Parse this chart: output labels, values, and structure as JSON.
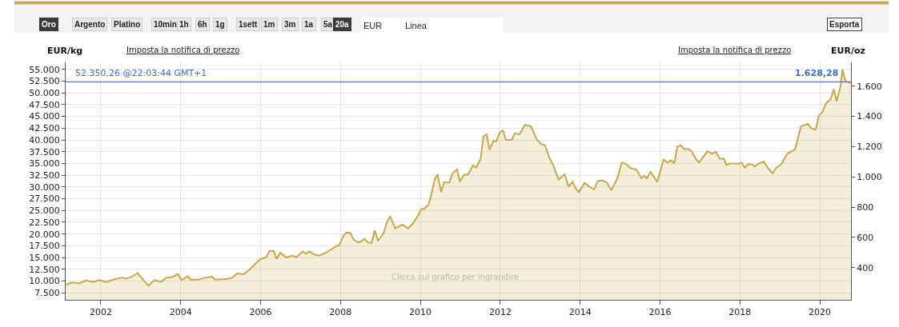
{
  "chart_data": {
    "type": "area",
    "xlabel": null,
    "ylabel": "EUR/kg",
    "y2label": "EUR/oz",
    "x": [
      2001.13,
      2001.28,
      2001.46,
      2001.63,
      2001.81,
      2001.96,
      2002.14,
      2002.35,
      2002.53,
      2002.64,
      2002.78,
      2002.92,
      2003.07,
      2003.19,
      2003.35,
      2003.5,
      2003.64,
      2003.78,
      2003.93,
      2004.02,
      2004.18,
      2004.25,
      2004.43,
      2004.61,
      2004.79,
      2004.86,
      2005.14,
      2005.29,
      2005.41,
      2005.57,
      2005.72,
      2005.86,
      2006.0,
      2006.13,
      2006.23,
      2006.33,
      2006.4,
      2006.49,
      2006.65,
      2006.79,
      2006.9,
      2007.06,
      2007.14,
      2007.22,
      2007.33,
      2007.47,
      2007.65,
      2007.87,
      2007.97,
      2008.08,
      2008.15,
      2008.24,
      2008.33,
      2008.44,
      2008.51,
      2008.6,
      2008.69,
      2008.78,
      2008.86,
      2008.94,
      2009.08,
      2009.16,
      2009.24,
      2009.37,
      2009.55,
      2009.69,
      2009.8,
      2009.87,
      2009.94,
      2010.02,
      2010.09,
      2010.21,
      2010.28,
      2010.36,
      2010.43,
      2010.52,
      2010.59,
      2010.73,
      2010.8,
      2010.92,
      2010.99,
      2011.09,
      2011.19,
      2011.32,
      2011.4,
      2011.51,
      2011.58,
      2011.66,
      2011.73,
      2011.83,
      2011.9,
      2011.99,
      2012.07,
      2012.14,
      2012.29,
      2012.36,
      2012.48,
      2012.62,
      2012.77,
      2012.92,
      2013.03,
      2013.12,
      2013.22,
      2013.33,
      2013.46,
      2013.61,
      2013.71,
      2013.81,
      2013.9,
      2013.97,
      2014.11,
      2014.22,
      2014.35,
      2014.44,
      2014.55,
      2014.67,
      2014.78,
      2014.93,
      2015.04,
      2015.15,
      2015.26,
      2015.41,
      2015.53,
      2015.61,
      2015.67,
      2015.76,
      2015.93,
      2016.09,
      2016.19,
      2016.28,
      2016.36,
      2016.43,
      2016.52,
      2016.61,
      2016.71,
      2016.8,
      2016.89,
      2016.98,
      2017.08,
      2017.19,
      2017.3,
      2017.4,
      2017.49,
      2017.6,
      2017.66,
      2017.75,
      2017.86,
      2017.95,
      2018.04,
      2018.12,
      2018.21,
      2018.3,
      2018.38,
      2018.45,
      2018.6,
      2018.71,
      2018.82,
      2018.9,
      2019.03,
      2019.19,
      2019.38,
      2019.53,
      2019.7,
      2019.8,
      2019.9,
      2019.97,
      2020.07,
      2020.16,
      2020.27,
      2020.35,
      2020.42,
      2020.52,
      2020.57,
      2020.64,
      2020.77
    ],
    "series": [
      {
        "color": "#c8a84b",
        "values": [
          9200,
          9700,
          9500,
          10100,
          9800,
          10200,
          9800,
          10400,
          10700,
          10500,
          10900,
          11700,
          10200,
          9000,
          10200,
          9800,
          10700,
          10800,
          11500,
          10200,
          11000,
          10300,
          10300,
          10700,
          10900,
          10300,
          10400,
          10700,
          11600,
          11400,
          12400,
          13600,
          14700,
          15000,
          16400,
          16400,
          14700,
          16000,
          15000,
          15400,
          15100,
          16300,
          15800,
          16300,
          15700,
          15400,
          16100,
          17300,
          17600,
          19700,
          20300,
          20300,
          18800,
          18200,
          18400,
          18900,
          18200,
          18100,
          20800,
          18500,
          20200,
          22400,
          23800,
          21200,
          22000,
          21200,
          22100,
          23000,
          23900,
          25300,
          25300,
          26300,
          28600,
          31600,
          32700,
          28900,
          31000,
          30900,
          32900,
          33700,
          31100,
          32600,
          32600,
          34600,
          34100,
          36000,
          40800,
          41200,
          37900,
          39800,
          39700,
          41600,
          42000,
          40000,
          40000,
          41400,
          41200,
          43200,
          42900,
          40000,
          39100,
          38900,
          36400,
          34600,
          31600,
          32700,
          30100,
          31100,
          29500,
          28900,
          30900,
          30100,
          29500,
          31200,
          31400,
          30900,
          29300,
          31800,
          35200,
          34900,
          34000,
          33700,
          31900,
          32400,
          31800,
          33200,
          31100,
          35800,
          35200,
          35700,
          35000,
          38600,
          38800,
          38000,
          38100,
          37500,
          36000,
          35200,
          36400,
          37600,
          37100,
          37500,
          36000,
          36000,
          34700,
          35000,
          35000,
          34900,
          35200,
          34100,
          34900,
          34800,
          34400,
          34900,
          35400,
          33900,
          32900,
          34000,
          34800,
          37100,
          38000,
          42900,
          43400,
          42400,
          42200,
          45100,
          46000,
          47900,
          48600,
          50800,
          48200,
          51400,
          55000,
          52500,
          52100
        ]
      }
    ],
    "xlim": [
      2001.12,
      2020.78
    ],
    "xticks": [
      2002,
      2004,
      2006,
      2008,
      2010,
      2012,
      2014,
      2016,
      2018,
      2020
    ],
    "ylim": [
      6000,
      56500
    ],
    "yticks": [
      {
        "value": 7500,
        "label": "7.500"
      },
      {
        "value": 10000,
        "label": "10.000"
      },
      {
        "value": 12500,
        "label": "12.500"
      },
      {
        "value": 15000,
        "label": "15.000"
      },
      {
        "value": 17500,
        "label": "17.500"
      },
      {
        "value": 20000,
        "label": "20.000"
      },
      {
        "value": 22500,
        "label": "22.500"
      },
      {
        "value": 25000,
        "label": "25.000"
      },
      {
        "value": 27500,
        "label": "27.500"
      },
      {
        "value": 30000,
        "label": "30.000"
      },
      {
        "value": 32500,
        "label": "32.500"
      },
      {
        "value": 35000,
        "label": "35.000"
      },
      {
        "value": 37500,
        "label": "37.500"
      },
      {
        "value": 40000,
        "label": "40.000"
      },
      {
        "value": 42500,
        "label": "42.500"
      },
      {
        "value": 45000,
        "label": "45.000"
      },
      {
        "value": 47500,
        "label": "47.500"
      },
      {
        "value": 50000,
        "label": "50.000"
      },
      {
        "value": 52500,
        "label": "52.500"
      },
      {
        "value": 55000,
        "label": "55.000"
      }
    ],
    "y2lim": [
      186.6,
      1757.3
    ],
    "y2ticks": [
      400,
      600,
      800,
      {
        "value": 1000,
        "label": "1.000"
      },
      {
        "value": 1200,
        "label": "1.200"
      },
      {
        "value": 1400,
        "label": "1.400"
      },
      {
        "value": 1600,
        "label": "1.600"
      }
    ],
    "ref_lines": [
      {
        "axis": "y",
        "value": 52350.26,
        "label": "52.350,26 @22:03:44 GMT+1",
        "color": "#3a6fd0"
      }
    ],
    "annotations": [
      "Oro",
      "Argento",
      "Platino",
      "10min",
      "1h",
      "6h",
      "1g",
      "1sett",
      "1m",
      "3m",
      "1a",
      "5a",
      "20a",
      "EUR",
      "Linea",
      "Esporta",
      "Imposta la notifica di prezzo",
      "Imposta la notifica di prezzo",
      "Clicca sul grafico per ingrandire",
      {
        "text": "1.628,28",
        "x": 2020.5,
        "y": 52350.26
      }
    ],
    "grid": true,
    "legend": false,
    "marker": "none",
    "line_style": "solid"
  }
}
